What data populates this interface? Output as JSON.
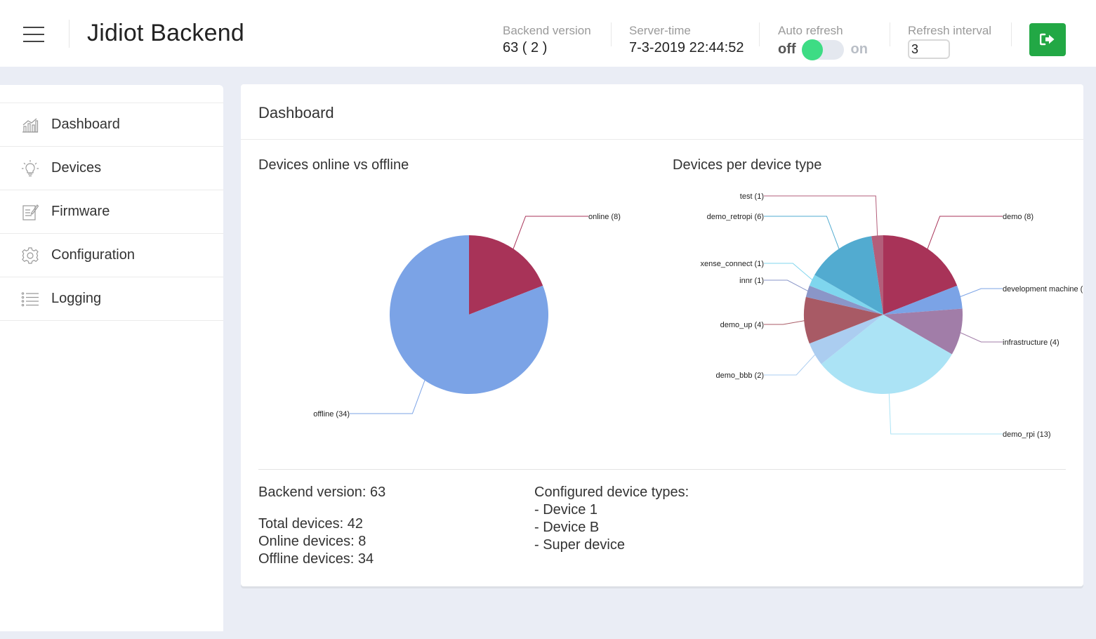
{
  "header": {
    "title": "Jidiot Backend",
    "backend_version_label": "Backend version",
    "backend_version_value": "63 ( 2 )",
    "server_time_label": "Server-time",
    "server_time_value": "7-3-2019 22:44:52",
    "auto_refresh_label": "Auto refresh",
    "auto_refresh_off": "off",
    "auto_refresh_on": "on",
    "refresh_interval_label": "Refresh interval",
    "refresh_interval_value": "3"
  },
  "sidebar": {
    "items": [
      {
        "label": "Dashboard",
        "icon": "bar-chart-icon"
      },
      {
        "label": "Devices",
        "icon": "lightbulb-icon"
      },
      {
        "label": "Firmware",
        "icon": "edit-document-icon"
      },
      {
        "label": "Configuration",
        "icon": "gear-icon"
      },
      {
        "label": "Logging",
        "icon": "list-icon"
      }
    ]
  },
  "main": {
    "title": "Dashboard",
    "chart1_title": "Devices online vs offline",
    "chart2_title": "Devices per device type",
    "info": {
      "backend_version": "Backend version: 63",
      "total_devices": "Total devices: 42",
      "online_devices": "Online devices: 8",
      "offline_devices": "Offline devices: 34",
      "configured_title": "Configured device types:",
      "types": [
        "- Device 1",
        "- Device B",
        "- Super device"
      ]
    }
  },
  "chart_data": [
    {
      "type": "pie",
      "title": "Devices online vs offline",
      "categories": [
        "online",
        "offline"
      ],
      "values": [
        8,
        34
      ],
      "labels": [
        "online (8)",
        "offline (34)"
      ],
      "colors": [
        "#a83358",
        "#7ba3e6"
      ]
    },
    {
      "type": "pie",
      "title": "Devices per device type",
      "categories": [
        "demo",
        "development machine",
        "infrastructure",
        "demo_rpi",
        "demo_bbb",
        "demo_up",
        "innr",
        "xense_connect",
        "demo_retropi",
        "test"
      ],
      "values": [
        8,
        2,
        4,
        13,
        2,
        4,
        1,
        1,
        6,
        1
      ],
      "labels": [
        "demo (8)",
        "development machine (",
        "infrastructure (4)",
        "demo_rpi (13)",
        "demo_bbb (2)",
        "demo_up (4)",
        "innr (1)",
        "xense_connect (1)",
        "demo_retropi (6)",
        "test (1)"
      ],
      "colors": [
        "#a83358",
        "#7ba3e6",
        "#a17da8",
        "#abe3f5",
        "#abcdf0",
        "#a85a65",
        "#8a96c8",
        "#7fd6ee",
        "#52abd0",
        "#b35e7a"
      ]
    }
  ]
}
